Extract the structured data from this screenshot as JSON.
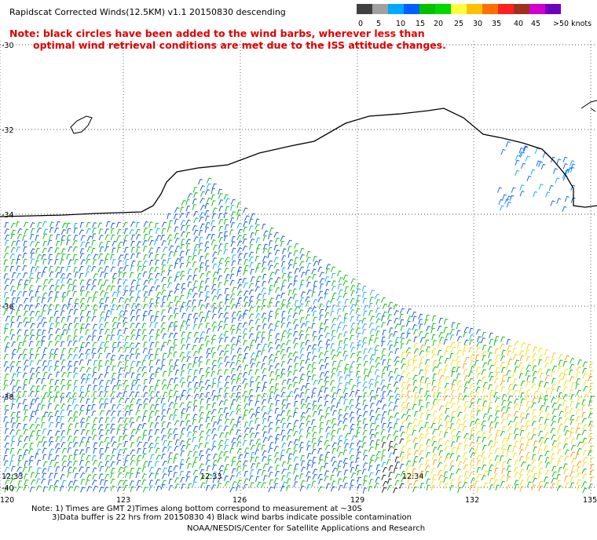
{
  "title": "Rapidscat Corrected Winds(12.5KM) v1.1 20150830 descending",
  "note_line1": "Note: black circles have been added to the wind barbs, wherever less than",
  "note_line2": "optimal wind retrieval conditions are met due to the ISS attitude changes.",
  "legend": {
    "colors": [
      "#404040",
      "#a0a0a0",
      "#00a8ff",
      "#0060ff",
      "#00c000",
      "#00d800",
      "#ffff40",
      "#ffc000",
      "#ff7000",
      "#ff2020",
      "#a03020",
      "#d000d0",
      "#7000c0"
    ],
    "labels": [
      "0",
      "5",
      "10",
      "15",
      "20",
      "25",
      "30",
      "35",
      "40",
      "45",
      ">50 knots"
    ]
  },
  "lat_labels": [
    "-30",
    "-32",
    "-34",
    "-36",
    "-38",
    "-40"
  ],
  "lon_labels": [
    "120",
    "123",
    "126",
    "129",
    "132",
    "135"
  ],
  "time_labels": [
    "12:33",
    "12:33",
    "12:34"
  ],
  "footer": {
    "line1": "Note: 1) Times are GMT 2)Times along bottom correspond to measurement at ~30S",
    "line2": "3)Data buffer is 22 hrs from 20150830 4) Black wind barbs indicate possible contamination",
    "line3": "NOAA/NESDIS/Center for Satellite Applications and Research"
  }
}
